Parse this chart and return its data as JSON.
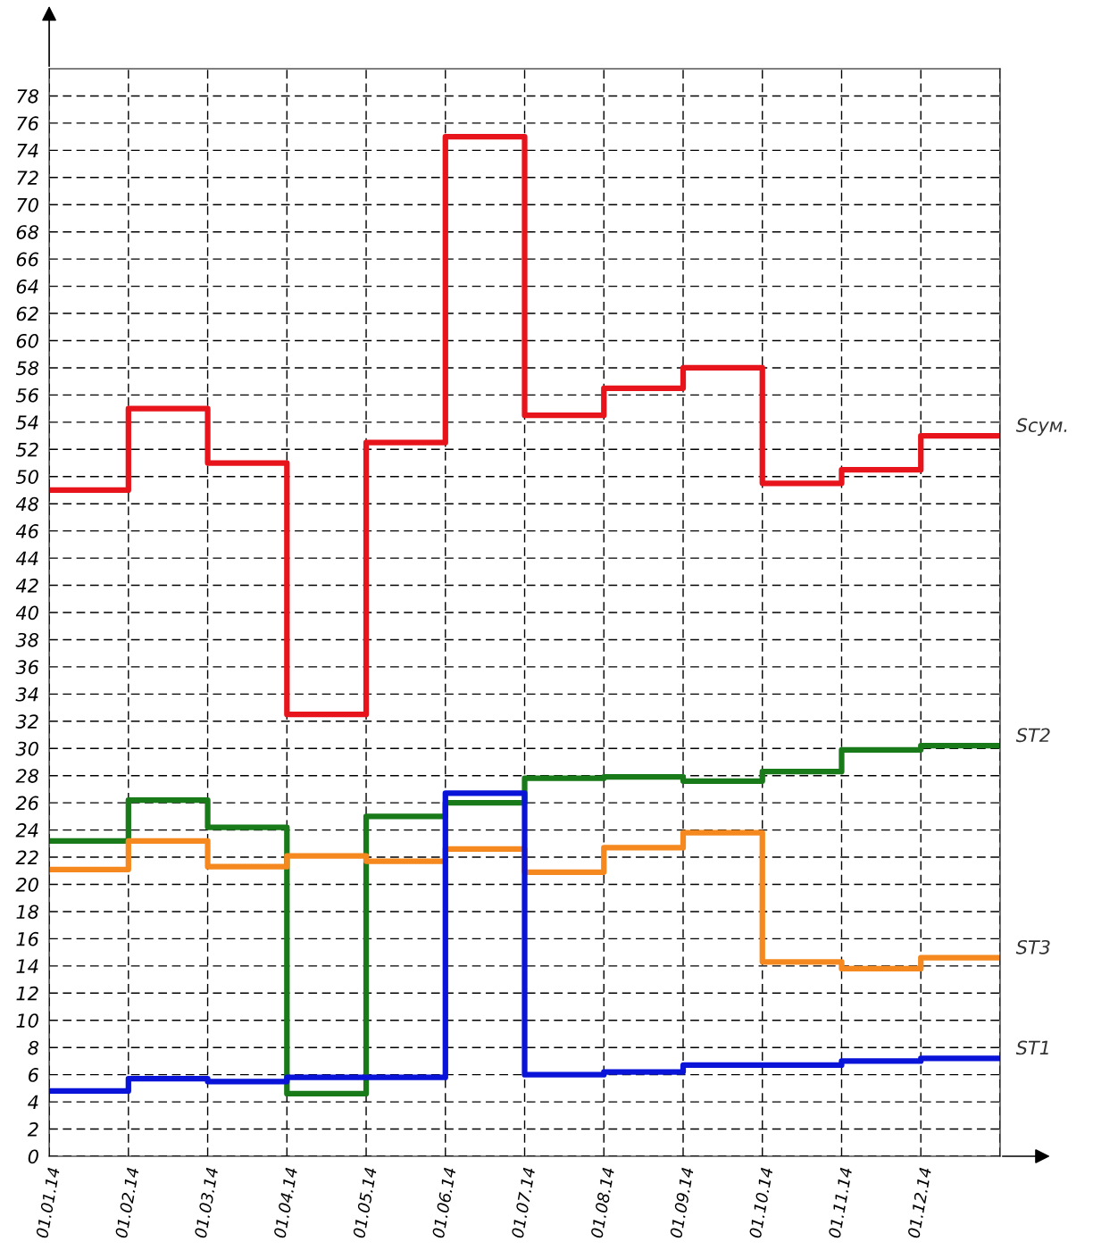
{
  "chart_data": {
    "type": "step",
    "categories": [
      "01.01.14",
      "01.02.14",
      "01.03.14",
      "01.04.14",
      "01.05.14",
      "01.06.14",
      "01.07.14",
      "01.08.14",
      "01.09.14",
      "01.10.14",
      "01.11.14",
      "01.12.14",
      null
    ],
    "ylim": [
      0,
      80
    ],
    "yticks": [
      0,
      2,
      4,
      6,
      8,
      10,
      12,
      14,
      16,
      18,
      20,
      22,
      24,
      26,
      28,
      30,
      32,
      34,
      36,
      38,
      40,
      42,
      44,
      46,
      48,
      50,
      52,
      54,
      56,
      58,
      60,
      62,
      64,
      66,
      68,
      70,
      72,
      74,
      76,
      78
    ],
    "grid": true,
    "legend": false,
    "line_style": "solid",
    "marker": "none",
    "series": [
      {
        "name": "Sсум.",
        "color": "#e8141b",
        "values": [
          49,
          55,
          51,
          32.5,
          52.5,
          75,
          54.5,
          56.5,
          58,
          49.5,
          50.5,
          53,
          53
        ]
      },
      {
        "name": "ST2",
        "color": "#197a19",
        "values": [
          23.2,
          26.2,
          24.2,
          4.6,
          25,
          26,
          27.8,
          27.9,
          27.6,
          28.3,
          29.9,
          30.2,
          30.2
        ]
      },
      {
        "name": "ST3",
        "color": "#f5891f",
        "values": [
          21.1,
          23.2,
          21.3,
          22.1,
          21.7,
          22.6,
          20.9,
          22.7,
          23.8,
          14.3,
          13.8,
          14.6,
          14.6
        ]
      },
      {
        "name": "ST1",
        "color": "#0a14d8",
        "values": [
          4.8,
          5.7,
          5.5,
          5.8,
          5.8,
          26.7,
          6,
          6.2,
          6.7,
          6.7,
          7,
          7.2,
          7.2
        ]
      }
    ]
  }
}
